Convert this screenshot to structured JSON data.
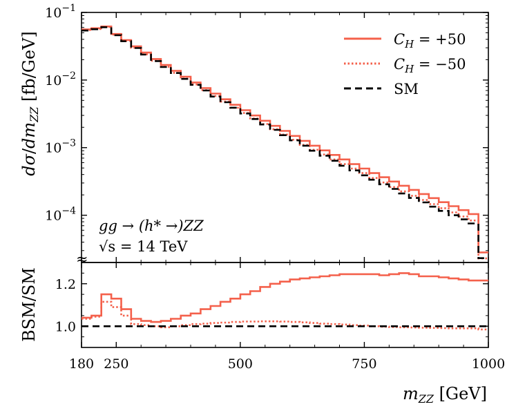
{
  "chart_data": [
    {
      "type": "line",
      "panel": "main",
      "ylabel": "dσ/dm_ZZ [fb/GeV]",
      "yscale": "log",
      "ylim": [
        2e-05,
        0.1
      ],
      "xlim": [
        180,
        1000
      ],
      "y_ticks": [
        {
          "value": 0.1,
          "base": "10",
          "exp": "−1"
        },
        {
          "value": 0.01,
          "base": "10",
          "exp": "−2"
        },
        {
          "value": 0.001,
          "base": "10",
          "exp": "−3"
        },
        {
          "value": 0.0001,
          "base": "10",
          "exp": "−4"
        }
      ],
      "bin_edges": [
        180,
        200,
        220,
        240,
        260,
        280,
        300,
        320,
        340,
        360,
        380,
        400,
        420,
        440,
        460,
        480,
        500,
        520,
        540,
        560,
        580,
        600,
        620,
        640,
        660,
        680,
        700,
        720,
        740,
        760,
        780,
        800,
        820,
        840,
        860,
        880,
        900,
        920,
        940,
        960,
        980,
        1000
      ],
      "series": [
        {
          "name": "C_H = +50",
          "style": "solid",
          "color": "#f4604b",
          "values": [
            0.056,
            0.0585,
            0.062,
            0.048,
            0.039,
            0.0315,
            0.0255,
            0.0205,
            0.0167,
            0.0137,
            0.0112,
            0.0092,
            0.0076,
            0.0063,
            0.0052,
            0.0043,
            0.00358,
            0.00299,
            0.0025,
            0.0021,
            0.00177,
            0.00149,
            0.00126,
            0.00107,
            0.00091,
            0.00078,
            0.00067,
            0.00057,
            0.00049,
            0.00042,
            0.000365,
            0.000315,
            0.000273,
            0.000237,
            0.000206,
            0.000179,
            0.000156,
            0.000136,
            0.000119,
            0.000104,
            2.82e-05
          ]
        },
        {
          "name": "C_H = −50",
          "style": "dotted",
          "color": "#f4604b",
          "values": [
            0.055,
            0.057,
            0.061,
            0.047,
            0.038,
            0.03,
            0.024,
            0.0193,
            0.0157,
            0.0128,
            0.0105,
            0.0086,
            0.0071,
            0.0058,
            0.0048,
            0.0039,
            0.00325,
            0.0027,
            0.00224,
            0.00187,
            0.00156,
            0.00131,
            0.0011,
            0.00093,
            0.00079,
            0.00067,
            0.00057,
            0.00049,
            0.00042,
            0.000355,
            0.000305,
            0.000261,
            0.000225,
            0.000194,
            0.000168,
            0.000146,
            0.000127,
            0.00011,
            9.58e-05,
            8.36e-05,
            2.3e-05
          ]
        },
        {
          "name": "SM",
          "style": "dashed",
          "color": "#000000",
          "values": [
            0.054,
            0.0565,
            0.0605,
            0.046,
            0.0375,
            0.0298,
            0.0238,
            0.0191,
            0.0156,
            0.0127,
            0.0104,
            0.0085,
            0.007,
            0.0057,
            0.0047,
            0.0039,
            0.0032,
            0.00265,
            0.0022,
            0.00183,
            0.00153,
            0.00128,
            0.00107,
            0.0009,
            0.00076,
            0.00064,
            0.00054,
            0.00046,
            0.00039,
            0.000335,
            0.000287,
            0.000245,
            0.00021,
            0.00018,
            0.000155,
            0.000134,
            0.000116,
            0.0001,
            8.68e-05,
            7.55e-05,
            2.32e-05
          ]
        }
      ],
      "legend": {
        "placement": "top-right",
        "entries": [
          {
            "var": "C",
            "sub": "H",
            "rest": " = +50"
          },
          {
            "var": "C",
            "sub": "H",
            "rest": " = −50"
          },
          {
            "text": "SM"
          }
        ]
      },
      "annotations": {
        "process": "gg → (h* →)ZZ",
        "energy": "√s = 14 TeV",
        "break_mark": "≈"
      }
    },
    {
      "type": "line",
      "panel": "ratio",
      "ylabel": "BSM/SM",
      "xlabel": "m_ZZ [GeV]",
      "ylim": [
        0.9,
        1.3
      ],
      "xlim": [
        180,
        1000
      ],
      "y_ticks": [
        "1.0",
        "1.2"
      ],
      "x_ticks": [
        "180",
        "250",
        "500",
        "750",
        "1000"
      ],
      "bin_edges": [
        180,
        200,
        220,
        240,
        260,
        280,
        300,
        320,
        340,
        360,
        380,
        400,
        420,
        440,
        460,
        480,
        500,
        520,
        540,
        560,
        580,
        600,
        620,
        640,
        660,
        680,
        700,
        720,
        740,
        760,
        780,
        800,
        820,
        840,
        860,
        880,
        900,
        920,
        940,
        960,
        980,
        1000
      ],
      "series": [
        {
          "name": "C_H = +50",
          "style": "solid",
          "color": "#f4604b",
          "values": [
            1.04,
            1.05,
            1.15,
            1.13,
            1.08,
            1.035,
            1.025,
            1.02,
            1.025,
            1.035,
            1.05,
            1.06,
            1.08,
            1.095,
            1.115,
            1.13,
            1.15,
            1.165,
            1.185,
            1.2,
            1.21,
            1.22,
            1.225,
            1.23,
            1.235,
            1.24,
            1.245,
            1.245,
            1.245,
            1.245,
            1.24,
            1.245,
            1.25,
            1.245,
            1.235,
            1.235,
            1.23,
            1.225,
            1.22,
            1.215,
            1.215
          ]
        },
        {
          "name": "C_H = −50",
          "style": "dotted",
          "color": "#f4604b",
          "values": [
            1.035,
            1.045,
            1.115,
            1.09,
            1.05,
            1.01,
            1.005,
            1.0,
            0.995,
            1.0,
            1.005,
            1.01,
            1.012,
            1.015,
            1.017,
            1.02,
            1.022,
            1.022,
            1.023,
            1.023,
            1.022,
            1.02,
            1.018,
            1.015,
            1.012,
            1.01,
            1.008,
            1.005,
            1.003,
            1.0,
            0.998,
            0.996,
            0.995,
            0.994,
            0.993,
            0.992,
            0.991,
            0.99,
            0.99,
            0.99,
            0.985
          ]
        },
        {
          "name": "SM",
          "style": "dashed",
          "color": "#000000",
          "values": [
            1,
            1,
            1,
            1,
            1,
            1,
            1,
            1,
            1,
            1,
            1,
            1,
            1,
            1,
            1,
            1,
            1,
            1,
            1,
            1,
            1,
            1,
            1,
            1,
            1,
            1,
            1,
            1,
            1,
            1,
            1,
            1,
            1,
            1,
            1,
            1,
            1,
            1,
            1,
            1,
            1
          ]
        }
      ]
    }
  ]
}
